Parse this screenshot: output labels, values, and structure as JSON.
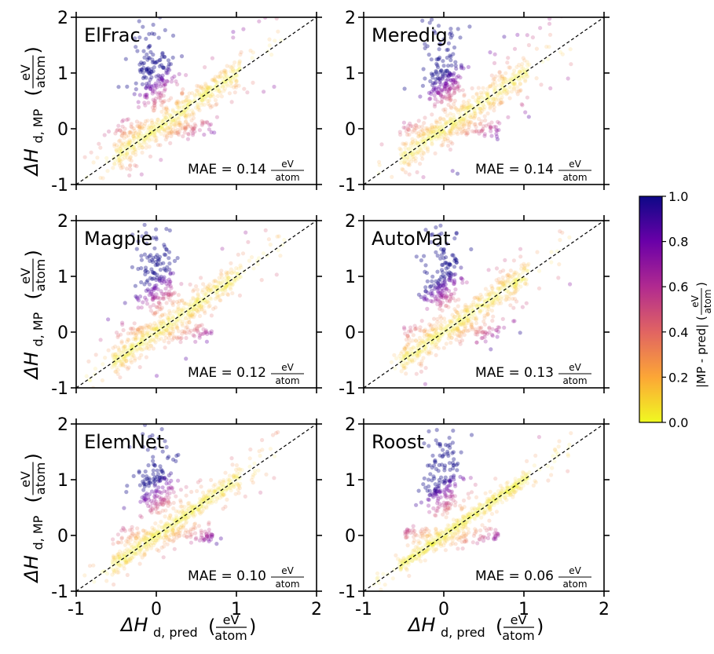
{
  "chart_data": [
    {
      "type": "scatter",
      "title": "ElFrac",
      "mae": "0.14",
      "xlim": [
        -1,
        2
      ],
      "ylim": [
        -1,
        2
      ],
      "x_ticks": [
        "-1",
        "0",
        "1",
        "2"
      ],
      "y_ticks": [
        "-1",
        "0",
        "1",
        "2"
      ],
      "diagonal": "y = x"
    },
    {
      "type": "scatter",
      "title": "Meredig",
      "mae": "0.14",
      "xlim": [
        -1,
        2
      ],
      "ylim": [
        -1,
        2
      ],
      "x_ticks": [
        "-1",
        "0",
        "1",
        "2"
      ],
      "y_ticks": [
        "-1",
        "0",
        "1",
        "2"
      ],
      "diagonal": "y = x"
    },
    {
      "type": "scatter",
      "title": "Magpie",
      "mae": "0.12",
      "xlim": [
        -1,
        2
      ],
      "ylim": [
        -1,
        2
      ],
      "x_ticks": [
        "-1",
        "0",
        "1",
        "2"
      ],
      "y_ticks": [
        "-1",
        "0",
        "1",
        "2"
      ],
      "diagonal": "y = x"
    },
    {
      "type": "scatter",
      "title": "AutoMat",
      "mae": "0.13",
      "xlim": [
        -1,
        2
      ],
      "ylim": [
        -1,
        2
      ],
      "x_ticks": [
        "-1",
        "0",
        "1",
        "2"
      ],
      "y_ticks": [
        "-1",
        "0",
        "1",
        "2"
      ],
      "diagonal": "y = x"
    },
    {
      "type": "scatter",
      "title": "ElemNet",
      "mae": "0.10",
      "xlim": [
        -1,
        2
      ],
      "ylim": [
        -1,
        2
      ],
      "x_ticks": [
        "-1",
        "0",
        "1",
        "2"
      ],
      "y_ticks": [
        "-1",
        "0",
        "1",
        "2"
      ],
      "diagonal": "y = x"
    },
    {
      "type": "scatter",
      "title": "Roost",
      "mae": "0.06",
      "xlim": [
        -1,
        2
      ],
      "ylim": [
        -1,
        2
      ],
      "x_ticks": [
        "-1",
        "0",
        "1",
        "2"
      ],
      "y_ticks": [
        "-1",
        "0",
        "1",
        "2"
      ],
      "diagonal": "y = x"
    }
  ],
  "labels": {
    "y_axis_main": "ΔH",
    "y_axis_sub": "d, MP",
    "x_axis_main": "ΔH",
    "x_axis_sub": "d, pred",
    "unit_num": "eV",
    "unit_den": "atom",
    "mae_prefix": "MAE = ",
    "colorbar_label": "|MP - pred| (",
    "colorbar_close": ")"
  },
  "colorbar": {
    "range": [
      0.0,
      1.0
    ],
    "ticks": [
      "0.0",
      "0.2",
      "0.4",
      "0.6",
      "0.8",
      "1.0"
    ],
    "colors": [
      "#f0f921",
      "#fca636",
      "#e16462",
      "#b12a90",
      "#6a00a8",
      "#0d0887"
    ]
  }
}
